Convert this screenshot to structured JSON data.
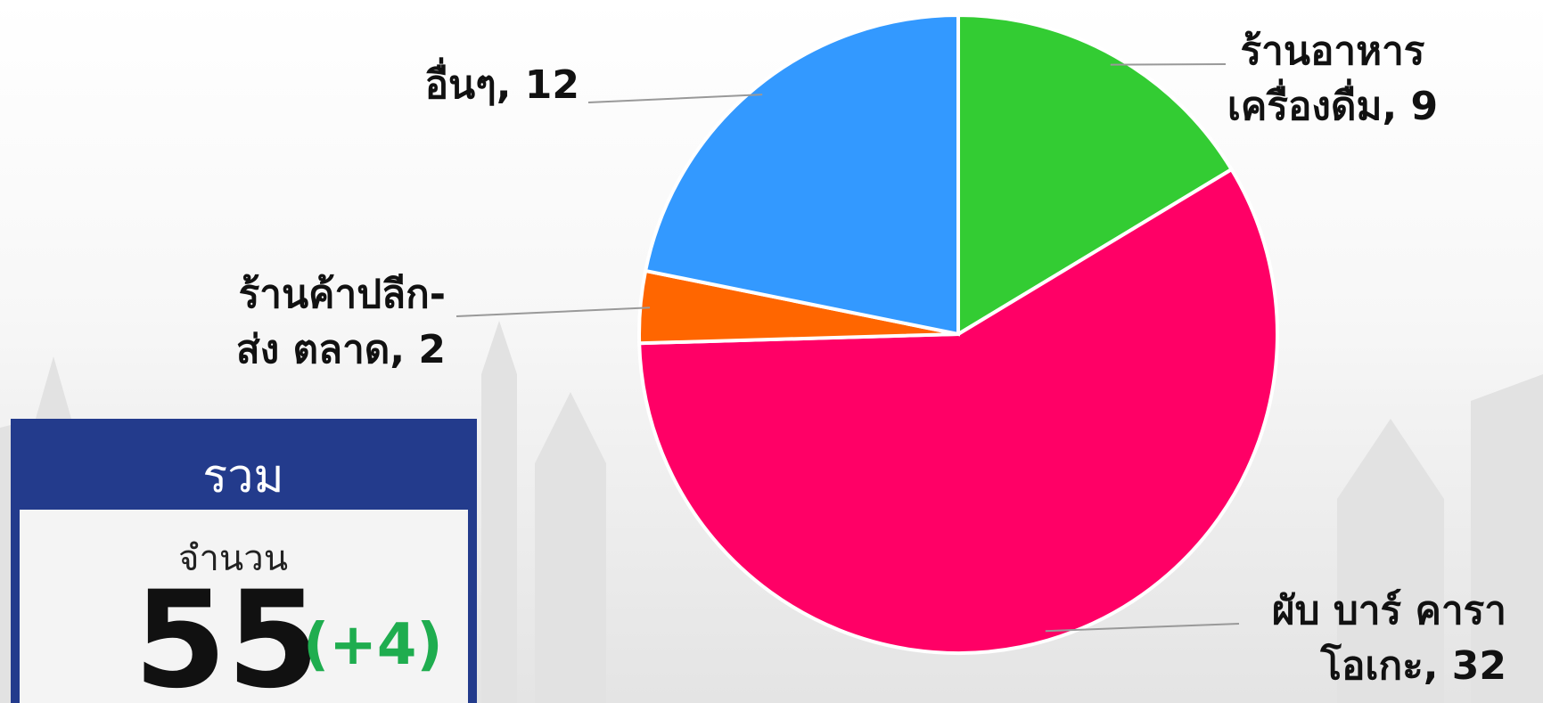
{
  "chart_data": {
    "type": "pie",
    "values": [
      9,
      32,
      2,
      12
    ],
    "value_labels": [
      "ร้านอาหาร\nเครื่องดื่ม, 9",
      "ผับ บาร์ คารา\nโอเกะ, 32",
      "ร้านค้าปลีก-\nส่ง ตลาด, 2",
      "อื่นๆ, 12"
    ],
    "colors": [
      "#33cc33",
      "#ff0066",
      "#ff6600",
      "#3399ff"
    ]
  },
  "total": {
    "title": "รวม",
    "label": "จำนวน",
    "value": 55,
    "change": "(+4)"
  }
}
